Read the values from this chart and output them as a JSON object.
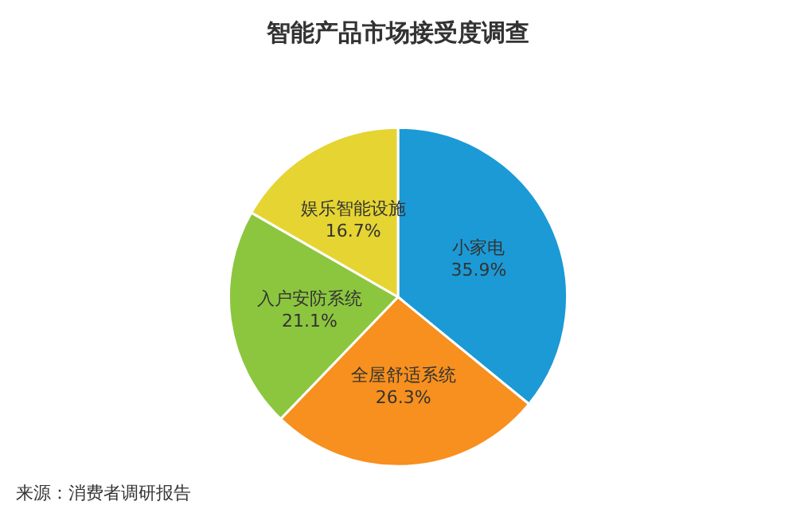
{
  "chart_data": {
    "type": "pie",
    "title": "智能产品市场接受度调查",
    "categories": [
      "小家电",
      "全屋舒适系统",
      "入户安防系统",
      "娱乐智能设施"
    ],
    "values": [
      35.9,
      26.3,
      21.1,
      16.7
    ],
    "value_labels": [
      "35.9%",
      "26.3%",
      "21.1%",
      "16.7%"
    ],
    "colors": [
      "#1b9ad6",
      "#f7901e",
      "#8cc63f",
      "#e5d432"
    ],
    "legend": false,
    "annotations": [
      "来源：消费者调研报告"
    ]
  }
}
